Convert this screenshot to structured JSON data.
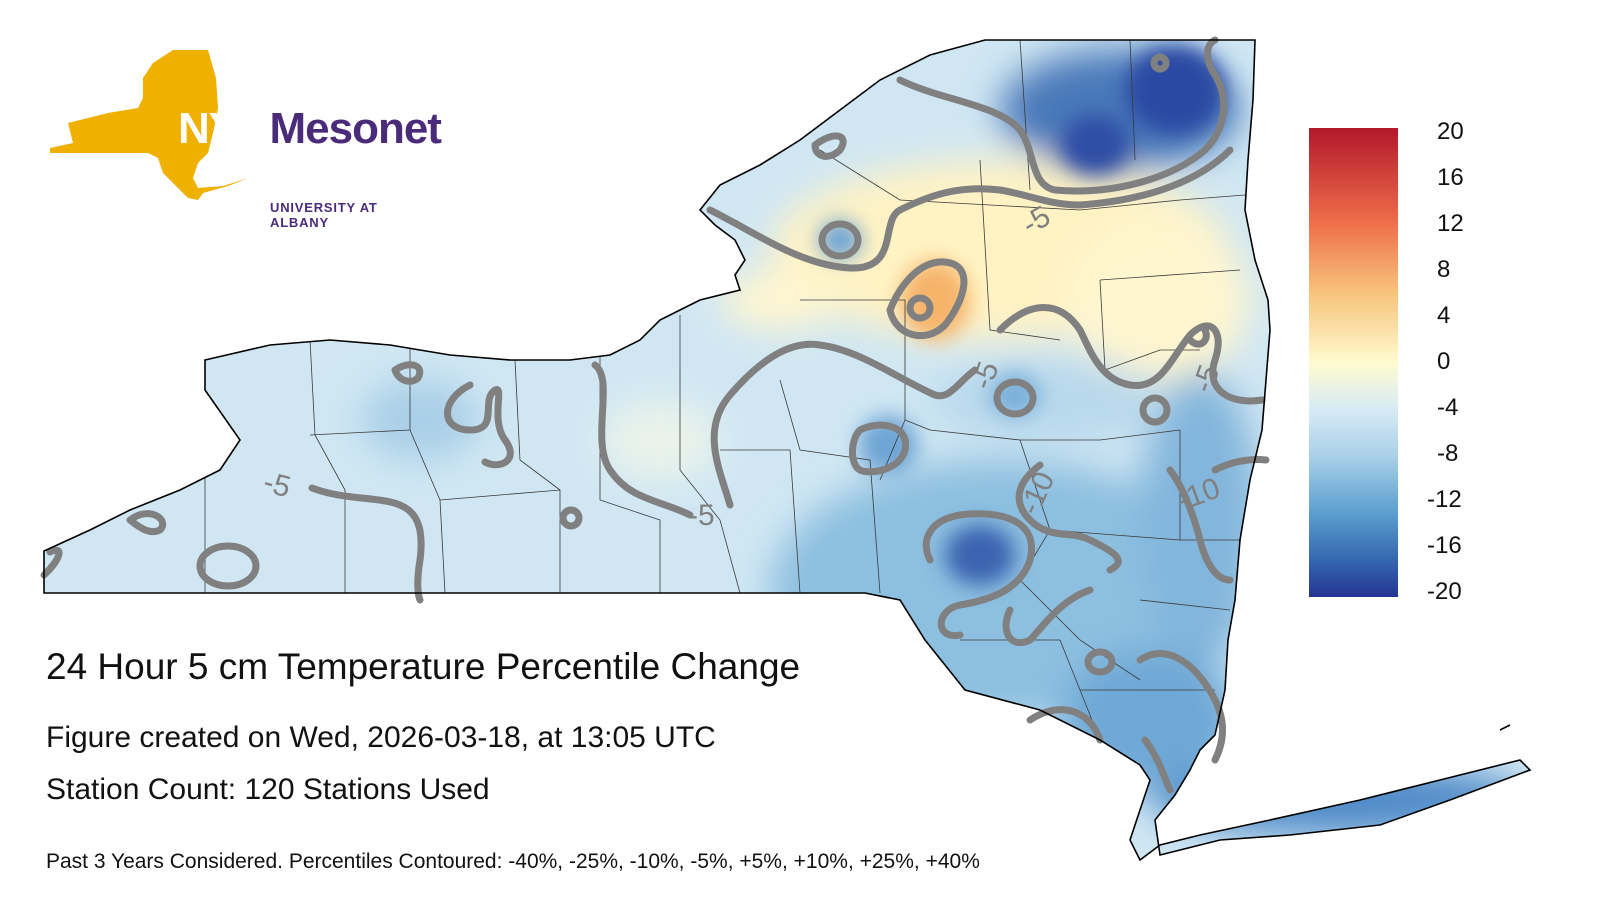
{
  "logo": {
    "abbrev": "NYS",
    "name": "Mesonet",
    "affiliation": "UNIVERSITY AT ALBANY",
    "colors": {
      "gold": "#f0b000",
      "purple": "#4a2b7a"
    }
  },
  "title": "24 Hour 5 cm Temperature Percentile Change",
  "created": "Figure created on Wed, 2026-03-18, at 13:05 UTC",
  "station_count": "Station Count: 120 Stations Used",
  "footnote": "Past 3 Years Considered. Percentiles Contoured: -40%, -25%, -10%, -5%, +5%, +10%, +25%, +40%",
  "colorbar": {
    "ticks": [
      "20",
      "16",
      "12",
      "8",
      "4",
      "0",
      "-4",
      "-8",
      "-12",
      "-16",
      "-20"
    ],
    "colors": [
      "#b2182b",
      "#d6604d",
      "#f4a582",
      "#fddbc7",
      "#fff7c8",
      "#e6f2f8",
      "#c6dfef",
      "#92c5de",
      "#4393c3",
      "#2166ac",
      "#253494"
    ]
  },
  "contour_labels": [
    "-5",
    "-5",
    "-5",
    "-5",
    "-10",
    "-10",
    "-5"
  ],
  "map_colors": {
    "base": "#cfe6f3",
    "outline": "#000000",
    "county_lines": "#333333",
    "contour": "#808080"
  }
}
